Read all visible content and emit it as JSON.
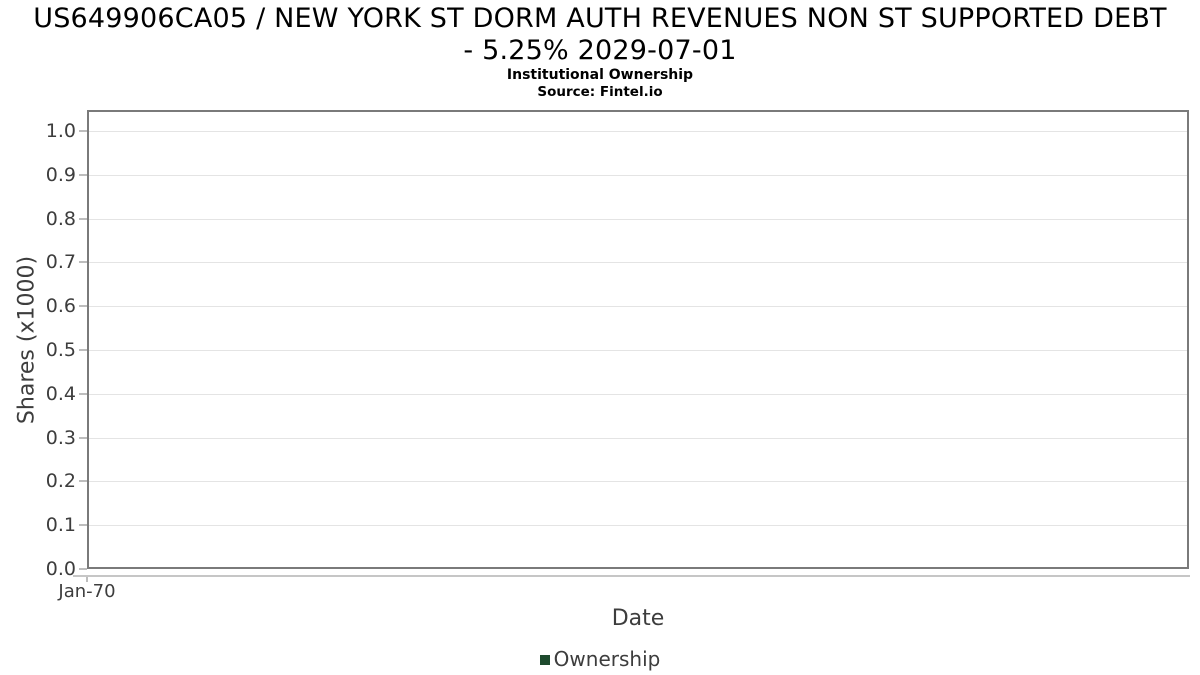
{
  "chart_data": {
    "type": "line",
    "title": "US649906CA05 / NEW YORK ST DORM AUTH REVENUES NON ST SUPPORTED DEBT - 5.25% 2029-07-01",
    "title_lines": [
      "US649906CA05 / NEW YORK ST DORM AUTH REVENUES NON ST SUPPORTED DEBT",
      "- 5.25% 2029-07-01"
    ],
    "subtitle": "Institutional Ownership",
    "source": "Source: Fintel.io",
    "xlabel": "Date",
    "ylabel": "Shares (x1000)",
    "ylim": [
      0.0,
      1.05
    ],
    "ytick_labels": [
      "0.0",
      "0.1",
      "0.2",
      "0.3",
      "0.4",
      "0.5",
      "0.6",
      "0.7",
      "0.8",
      "0.9",
      "1.0"
    ],
    "xtick_labels": [
      "Jan-70"
    ],
    "grid": "horizontal-only",
    "legend_position": "bottom-center",
    "series": [
      {
        "name": "Ownership",
        "color": "#1e4a2e",
        "x": [],
        "y": []
      }
    ]
  },
  "colors": {
    "ownership_green": "#1e4a2e",
    "axis_border": "#7a7a7a",
    "gridline": "#e4e4e4",
    "tick_text": "#3d3d3d"
  }
}
